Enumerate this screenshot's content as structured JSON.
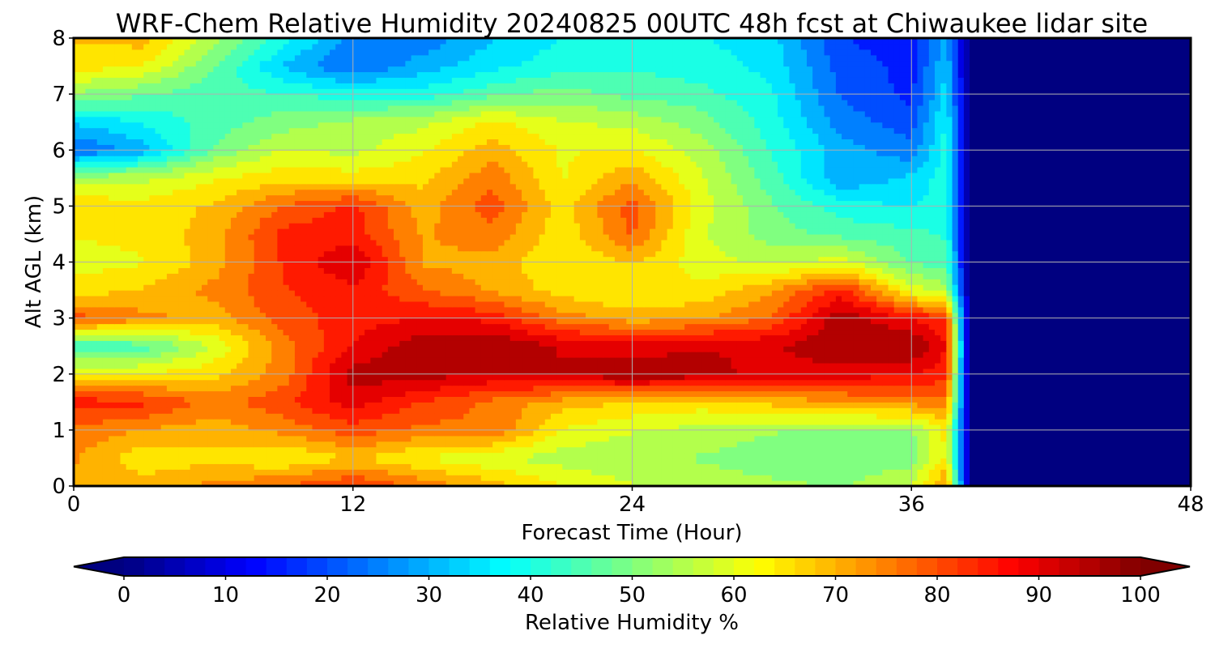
{
  "chart_data": {
    "type": "heatmap",
    "title": "WRF-Chem Relative Humidity 20240825 00UTC 48h fcst at Chiwaukee lidar site",
    "xlabel": "Forecast Time (Hour)",
    "ylabel": "Alt AGL (km)",
    "xlim": [
      0,
      48
    ],
    "ylim": [
      0,
      8
    ],
    "x_ticks": [
      "0",
      "12",
      "24",
      "36",
      "48"
    ],
    "y_ticks": [
      "0",
      "1",
      "2",
      "3",
      "4",
      "5",
      "6",
      "7",
      "8"
    ],
    "grid": true,
    "colormap": "jet",
    "colorbar": {
      "label": "Relative Humidity %",
      "range": [
        0,
        100
      ],
      "ticks": [
        "0",
        "10",
        "20",
        "30",
        "40",
        "50",
        "60",
        "70",
        "80",
        "90",
        "100"
      ],
      "extend": "both",
      "orientation": "horizontal",
      "placement": "bottom"
    },
    "x": [
      0,
      3,
      6,
      9,
      12,
      15,
      18,
      21,
      24,
      27,
      30,
      33,
      36,
      37.5,
      38.5,
      42,
      45,
      48
    ],
    "y": [
      0,
      0.5,
      1,
      1.5,
      2,
      2.5,
      3,
      3.5,
      4,
      4.5,
      5,
      5.5,
      6,
      6.5,
      7,
      7.5,
      8
    ],
    "z": [
      [
        72,
        70,
        74,
        78,
        83,
        76,
        70,
        63,
        58,
        56,
        54,
        52,
        58,
        75,
        0,
        0,
        0,
        0
      ],
      [
        73,
        64,
        66,
        62,
        68,
        62,
        58,
        55,
        53,
        52,
        49,
        48,
        50,
        63,
        0,
        0,
        0,
        0
      ],
      [
        76,
        72,
        70,
        74,
        80,
        76,
        77,
        62,
        58,
        56,
        53,
        52,
        52,
        64,
        0,
        0,
        0,
        0
      ],
      [
        85,
        84,
        75,
        81,
        90,
        82,
        76,
        70,
        67,
        65,
        69,
        72,
        74,
        76,
        0,
        0,
        0,
        0
      ],
      [
        63,
        63,
        66,
        75,
        95,
        95,
        92,
        93,
        97,
        95,
        90,
        90,
        88,
        84,
        0,
        0,
        0,
        0
      ],
      [
        42,
        45,
        58,
        75,
        88,
        96,
        98,
        92,
        90,
        92,
        92,
        97,
        98,
        88,
        0,
        0,
        0,
        0
      ],
      [
        80,
        74,
        70,
        80,
        85,
        88,
        86,
        75,
        70,
        72,
        78,
        96,
        87,
        83,
        0,
        0,
        0,
        0
      ],
      [
        65,
        68,
        74,
        82,
        86,
        78,
        72,
        65,
        62,
        64,
        72,
        85,
        60,
        55,
        0,
        0,
        0,
        0
      ],
      [
        60,
        62,
        70,
        83,
        93,
        72,
        70,
        63,
        68,
        60,
        56,
        60,
        47,
        45,
        0,
        0,
        0,
        0
      ],
      [
        63,
        64,
        70,
        84,
        85,
        72,
        76,
        64,
        78,
        58,
        50,
        46,
        44,
        42,
        0,
        0,
        0,
        0
      ],
      [
        66,
        65,
        68,
        78,
        84,
        70,
        80,
        65,
        80,
        60,
        48,
        40,
        37,
        40,
        0,
        0,
        0,
        0
      ],
      [
        55,
        56,
        62,
        66,
        65,
        66,
        76,
        62,
        72,
        58,
        45,
        28,
        34,
        40,
        0,
        0,
        0,
        0
      ],
      [
        22,
        30,
        48,
        58,
        56,
        62,
        70,
        62,
        63,
        55,
        42,
        30,
        24,
        40,
        0,
        0,
        0,
        0
      ],
      [
        33,
        38,
        45,
        50,
        54,
        56,
        64,
        58,
        56,
        50,
        40,
        25,
        20,
        38,
        0,
        0,
        0,
        0
      ],
      [
        52,
        48,
        44,
        43,
        40,
        40,
        46,
        50,
        46,
        44,
        38,
        22,
        16,
        35,
        0,
        0,
        0,
        0
      ],
      [
        65,
        62,
        48,
        32,
        22,
        30,
        36,
        40,
        42,
        40,
        36,
        20,
        16,
        32,
        0,
        0,
        0,
        0
      ],
      [
        68,
        70,
        55,
        40,
        25,
        24,
        32,
        38,
        40,
        38,
        34,
        18,
        14,
        30,
        0,
        0,
        0,
        0
      ]
    ]
  }
}
